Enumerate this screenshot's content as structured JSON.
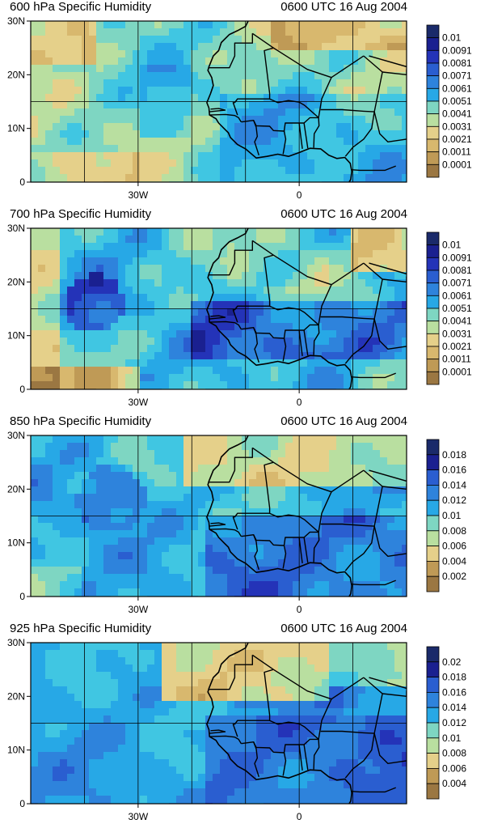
{
  "panels": [
    {
      "title": "600 hPa Specific Humidity",
      "time": "0600 UTC 16 Aug 2004",
      "colorbar": [
        "0.01",
        "0.0091",
        "0.0081",
        "0.0071",
        "0.0061",
        "0.0051",
        "0.0041",
        "0.0031",
        "0.0021",
        "0.0011",
        "0.0001"
      ],
      "lat_labels": [
        "30N",
        "20N",
        "10N",
        "0"
      ],
      "lon_labels": [
        "30W",
        "0"
      ]
    },
    {
      "title": "700 hPa Specific Humidity",
      "time": "0600 UTC 16 Aug 2004",
      "colorbar": [
        "0.01",
        "0.0091",
        "0.0081",
        "0.0071",
        "0.0061",
        "0.0051",
        "0.0041",
        "0.0031",
        "0.0021",
        "0.0011",
        "0.0001"
      ],
      "lat_labels": [
        "30N",
        "20N",
        "10N",
        "0"
      ],
      "lon_labels": [
        "30W",
        "0"
      ]
    },
    {
      "title": "850 hPa Specific Humidity",
      "time": "0600 UTC 16 Aug 2004",
      "colorbar": [
        "0.018",
        "0.016",
        "0.014",
        "0.012",
        "0.01",
        "0.008",
        "0.006",
        "0.004",
        "0.002"
      ],
      "lat_labels": [
        "30N",
        "20N",
        "10N",
        "0"
      ],
      "lon_labels": [
        "30W",
        "0"
      ]
    },
    {
      "title": "925 hPa Specific Humidity",
      "time": "0600 UTC 16 Aug 2004",
      "colorbar": [
        "0.02",
        "0.018",
        "0.016",
        "0.014",
        "0.012",
        "0.01",
        "0.008",
        "0.006",
        "0.004"
      ],
      "lat_labels": [
        "30N",
        "20N",
        "10N",
        "0"
      ],
      "lon_labels": [
        "30W",
        "0"
      ]
    }
  ],
  "colors": [
    "#9b7742",
    "#bf9a56",
    "#d8b86e",
    "#e5d08a",
    "#b9dfa0",
    "#7ed6c2",
    "#40c6e2",
    "#27a8e6",
    "#2e83dc",
    "#2a5ed0",
    "#2433b8",
    "#1a2090",
    "#1a2a6a"
  ]
}
